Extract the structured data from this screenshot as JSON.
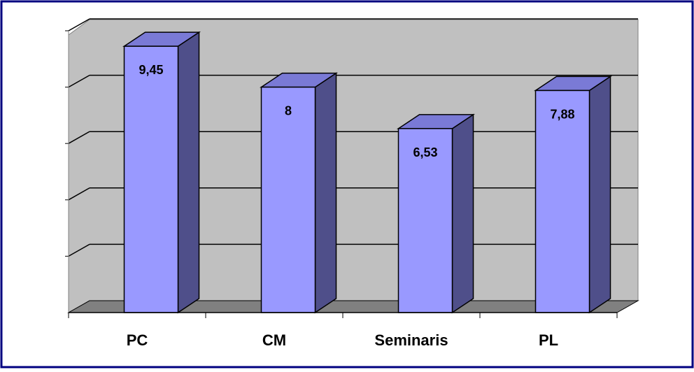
{
  "chart_data": {
    "type": "bar",
    "categories": [
      "PC",
      "CM",
      "Seminaris",
      "PL"
    ],
    "values": [
      9.45,
      8,
      6.53,
      7.88
    ],
    "data_labels": [
      "9,45",
      "8",
      "6,53",
      "7,88"
    ],
    "ylim": [
      0,
      10
    ],
    "grid": true,
    "legend": "none",
    "colors": {
      "bar_front": "#9999FF",
      "bar_top": "#7A7AD6",
      "bar_side": "#4F4F8A",
      "wall": "#C0C0C0",
      "floor": "#808080",
      "border": "#000080"
    }
  }
}
